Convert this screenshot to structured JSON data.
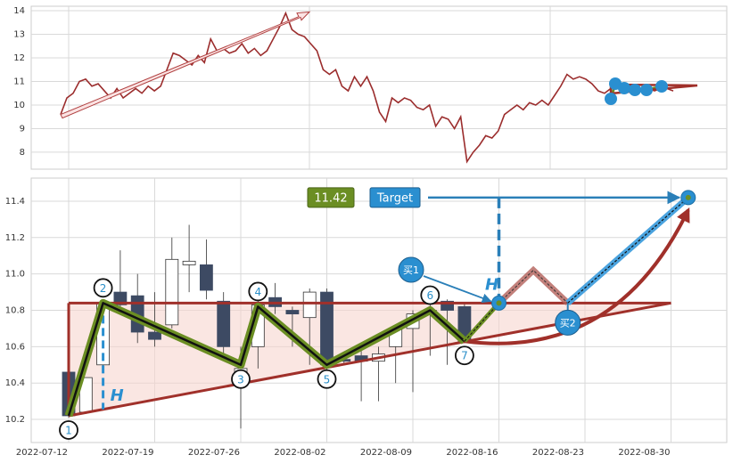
{
  "chart_data": [
    {
      "type": "line",
      "color": "#9b2d2d",
      "values": [
        9.6,
        10.3,
        10.5,
        11.0,
        11.1,
        10.8,
        10.9,
        10.6,
        10.3,
        10.7,
        10.3,
        10.5,
        10.7,
        10.5,
        10.8,
        10.6,
        10.8,
        11.5,
        12.2,
        12.1,
        11.9,
        11.7,
        12.1,
        11.8,
        12.8,
        12.3,
        12.4,
        12.2,
        12.3,
        12.6,
        12.2,
        12.4,
        12.1,
        12.3,
        12.8,
        13.3,
        13.9,
        13.2,
        13.0,
        12.9,
        12.6,
        12.3,
        11.5,
        11.3,
        11.5,
        10.8,
        10.6,
        11.2,
        10.8,
        11.2,
        10.6,
        9.7,
        9.3,
        10.3,
        10.1,
        10.3,
        10.2,
        9.9,
        9.8,
        10.0,
        9.1,
        9.5,
        9.4,
        9.0,
        9.5,
        7.6,
        8.0,
        8.3,
        8.7,
        8.6,
        8.9,
        9.6,
        9.8,
        10.0,
        9.8,
        10.1,
        10.0,
        10.2,
        10.0,
        10.4,
        10.8,
        11.3,
        11.1,
        11.2,
        11.1,
        10.9,
        10.6,
        10.5,
        10.7,
        10.8,
        10.6,
        10.7,
        10.6,
        10.7,
        10.7,
        10.6,
        10.7,
        10.7,
        10.6
      ],
      "ylim": [
        7.28,
        14.19
      ],
      "yticks": [
        8,
        9,
        10,
        11,
        12,
        13,
        14
      ],
      "grid": true
    },
    {
      "type": "candlestick",
      "up_color": "#ffffff",
      "down_color": "#3d4a63",
      "x": [
        "2022-07-12",
        "2022-07-13",
        "2022-07-14",
        "2022-07-15",
        "2022-07-18",
        "2022-07-19",
        "2022-07-20",
        "2022-07-21",
        "2022-07-22",
        "2022-07-25",
        "2022-07-26",
        "2022-07-27",
        "2022-07-28",
        "2022-07-29",
        "2022-08-01",
        "2022-08-02",
        "2022-08-03",
        "2022-08-04",
        "2022-08-05",
        "2022-08-08",
        "2022-08-09",
        "2022-08-10",
        "2022-08-11",
        "2022-08-12"
      ],
      "open": [
        10.46,
        10.24,
        10.5,
        10.9,
        10.88,
        10.68,
        10.72,
        11.05,
        11.05,
        10.85,
        10.46,
        10.6,
        10.87,
        10.8,
        10.76,
        10.9,
        10.53,
        10.55,
        10.52,
        10.6,
        10.7,
        10.78,
        10.85,
        10.82
      ],
      "close": [
        10.22,
        10.43,
        10.84,
        10.83,
        10.68,
        10.64,
        11.08,
        11.07,
        10.91,
        10.6,
        10.48,
        10.83,
        10.82,
        10.78,
        10.9,
        10.5,
        10.52,
        10.52,
        10.56,
        10.7,
        10.78,
        10.8,
        10.8,
        10.63
      ],
      "high": [
        10.47,
        10.43,
        10.86,
        11.13,
        11.0,
        10.9,
        11.2,
        11.27,
        11.19,
        10.9,
        10.6,
        10.86,
        10.95,
        10.82,
        10.92,
        10.92,
        10.55,
        10.58,
        10.6,
        10.72,
        10.8,
        10.83,
        10.86,
        10.84
      ],
      "low": [
        10.21,
        10.23,
        10.47,
        10.82,
        10.62,
        10.6,
        10.7,
        10.9,
        10.86,
        10.55,
        10.15,
        10.48,
        10.78,
        10.6,
        10.5,
        10.45,
        10.5,
        10.3,
        10.3,
        10.4,
        10.35,
        10.55,
        10.5,
        10.62
      ],
      "ylim": [
        10.073,
        11.527
      ],
      "yticks": [
        10.2,
        10.4,
        10.6,
        {
          "value": 11,
          "label": "11.0"
        },
        10.8,
        11.2,
        11.4
      ],
      "xticks": [
        "2022-07-12",
        "2022-07-19",
        "2022-07-26",
        "2022-08-02",
        "2022-08-09",
        "2022-08-16",
        "2022-08-23",
        "2022-08-30"
      ],
      "grid": true,
      "pattern": {
        "labels": [
          "1",
          "2",
          "3",
          "4",
          "5",
          "6",
          "7"
        ],
        "x": [
          "2022-07-12",
          "2022-07-14",
          "2022-07-26",
          "2022-07-27",
          "2022-08-02",
          "2022-08-10",
          "2022-08-12"
        ],
        "values": [
          10.22,
          10.84,
          10.5,
          10.82,
          10.5,
          10.8,
          10.63
        ]
      },
      "triangle": {
        "top": 10.84,
        "apex_x": "2022-08-30"
      },
      "signals": [
        {
          "label": "买1",
          "x": "2022-08-16",
          "value": 10.84
        },
        {
          "label": "买2",
          "x": "2022-08-22",
          "value": 10.84
        }
      ],
      "projection": {
        "x": [
          "2022-08-16",
          "2022-08-18",
          "2022-08-22"
        ],
        "values": [
          10.84,
          11.02,
          10.84
        ]
      },
      "target": {
        "label": "Target",
        "x": "2022-08-31",
        "value": 11.42
      },
      "height_label": "H"
    }
  ]
}
